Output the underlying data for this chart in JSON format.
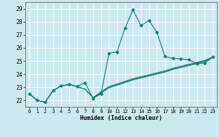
{
  "title": "",
  "xlabel": "Humidex (Indice chaleur)",
  "xlim": [
    -0.5,
    23.5
  ],
  "ylim": [
    21.5,
    29.5
  ],
  "yticks": [
    22,
    23,
    24,
    25,
    26,
    27,
    28,
    29
  ],
  "xtick_labels": [
    "0",
    "1",
    "2",
    "3",
    "4",
    "5",
    "6",
    "7",
    "8",
    "9",
    "10",
    "11",
    "12",
    "13",
    "14",
    "15",
    "16",
    "17",
    "18",
    "19",
    "20",
    "21",
    "22",
    "23"
  ],
  "background_color": "#cce9ee",
  "grid_color": "#ffffff",
  "line_color": "#1a7a6e",
  "series": [
    [
      22.5,
      22.0,
      21.85,
      22.75,
      23.1,
      23.2,
      23.05,
      23.35,
      22.15,
      22.5,
      25.6,
      25.7,
      27.5,
      28.9,
      27.7,
      28.1,
      27.2,
      25.35,
      25.2,
      25.15,
      25.1,
      24.8,
      24.85,
      25.3
    ],
    [
      22.5,
      22.0,
      21.85,
      22.75,
      23.1,
      23.2,
      23.05,
      22.85,
      22.2,
      22.65,
      23.05,
      23.25,
      23.45,
      23.65,
      23.8,
      23.95,
      24.1,
      24.25,
      24.45,
      24.6,
      24.75,
      24.9,
      25.05,
      25.3
    ],
    [
      22.5,
      22.0,
      21.85,
      22.75,
      23.1,
      23.2,
      23.05,
      22.85,
      22.2,
      22.6,
      23.0,
      23.2,
      23.4,
      23.6,
      23.75,
      23.9,
      24.05,
      24.2,
      24.4,
      24.55,
      24.7,
      24.85,
      25.0,
      25.3
    ],
    [
      22.5,
      22.0,
      21.85,
      22.75,
      23.1,
      23.2,
      23.05,
      22.85,
      22.2,
      22.55,
      22.95,
      23.15,
      23.35,
      23.55,
      23.7,
      23.85,
      24.0,
      24.15,
      24.35,
      24.5,
      24.65,
      24.8,
      24.95,
      25.3
    ]
  ]
}
